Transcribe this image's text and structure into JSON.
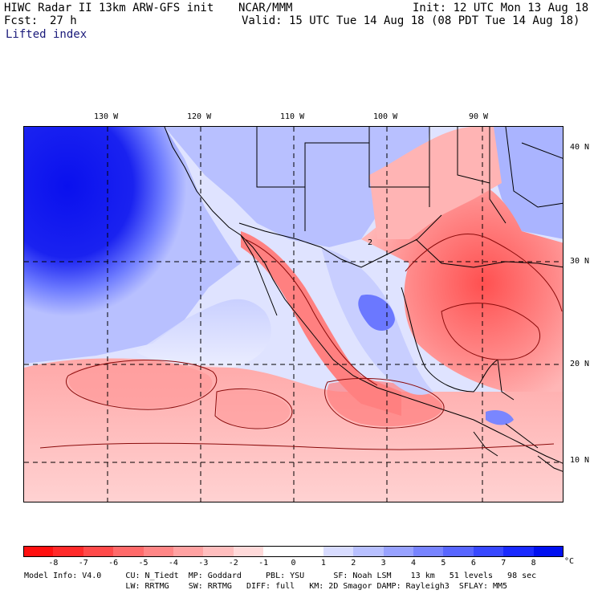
{
  "header": {
    "title": "HIWC Radar II 13km ARW-GFS init",
    "org": "NCAR/MMM",
    "init": "Init: 12 UTC Mon 13 Aug 18",
    "fcst_label": "Fcst:",
    "fcst_value": "27 h",
    "valid": "Valid: 15 UTC Tue 14 Aug 18 (08 PDT Tue 14 Aug 18)",
    "field": "Lifted index"
  },
  "map": {
    "longitude_labels": [
      "130 W",
      "120 W",
      "110 W",
      "100 W",
      "90 W"
    ],
    "latitude_labels": [
      "40 N",
      "30 N",
      "20 N",
      "10 N"
    ],
    "contour_label": "2"
  },
  "colorbar": {
    "labels": [
      "-8",
      "-7",
      "-6",
      "-5",
      "-4",
      "-3",
      "-2",
      "-1",
      "0",
      "1",
      "2",
      "3",
      "4",
      "5",
      "6",
      "7",
      "8"
    ],
    "unit": "°C",
    "colors": [
      "#ff1010",
      "#ff2a2a",
      "#ff4a4a",
      "#ff6a6a",
      "#ff8686",
      "#ffa2a2",
      "#ffbebe",
      "#ffdada",
      "#ffffff",
      "#ffffff",
      "#d8dcff",
      "#b8c0ff",
      "#98a2ff",
      "#7884ff",
      "#5866ff",
      "#3848ff",
      "#1a2aff",
      "#0010f0"
    ]
  },
  "footer": {
    "line1": "Model Info: V4.0     CU: N_Tiedt  MP: Goddard     PBL: YSU      SF: Noah LSM    13 km   51 levels   98 sec",
    "line2": "                     LW: RRTMG    SW: RRTMG   DIFF: full   KM: 2D Smagor DAMP: Rayleigh3  SFLAY: MM5"
  }
}
